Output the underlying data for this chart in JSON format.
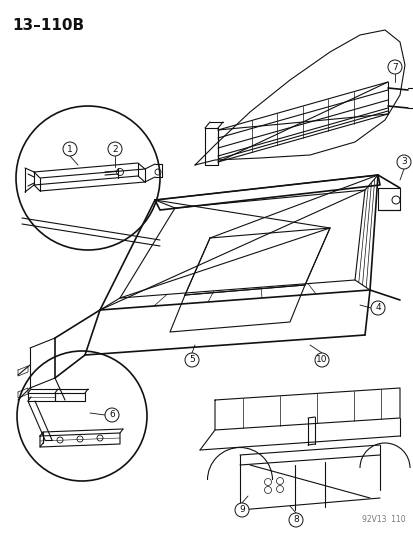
{
  "title": "13–110B",
  "watermark": "92V13  110",
  "bg_color": "#ffffff",
  "fg_color": "#111111",
  "figsize": [
    4.14,
    5.33
  ],
  "dpi": 100,
  "parts": [
    1,
    2,
    3,
    4,
    5,
    6,
    7,
    8,
    9,
    10
  ]
}
